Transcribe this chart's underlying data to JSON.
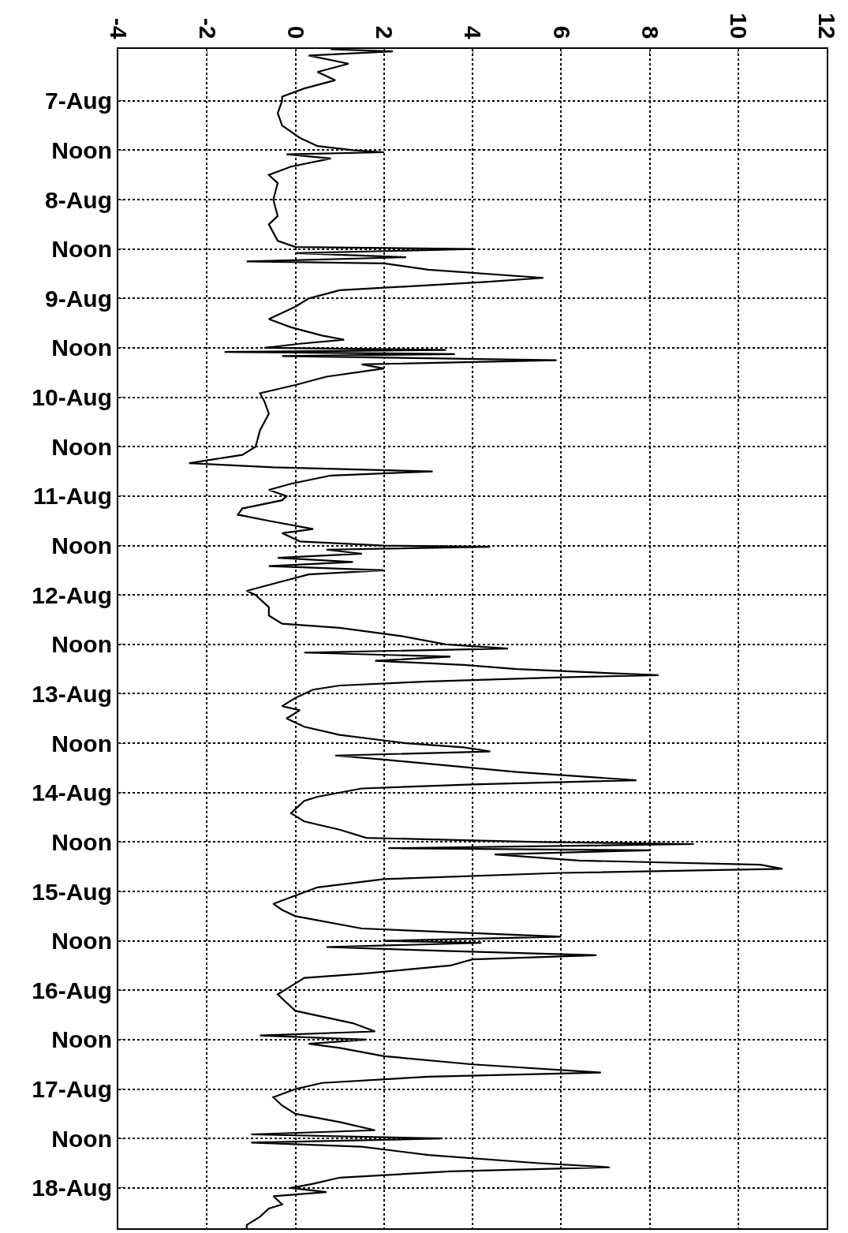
{
  "chart_data": {
    "type": "line",
    "orientation": "horizontal",
    "color": "#000000",
    "line_style": "solid",
    "grid": true,
    "x": [
      "--08-06T11:30",
      "--08-06T12:00",
      "--08-06T13:00",
      "--08-06T15:00",
      "--08-06T17:00",
      "--08-06T19:00",
      "--08-06T21:00",
      "--08-06T23:00",
      "--08-07T00:00",
      "--08-07T03:00",
      "--08-07T06:00",
      "--08-07T09:00",
      "--08-07T11:00",
      "--08-07T12:00",
      "--08-07T12:30",
      "--08-07T13:00",
      "--08-07T14:00",
      "--08-07T16:00",
      "--08-07T18:00",
      "--08-07T20:00",
      "--08-08T00:00",
      "--08-08T04:00",
      "--08-08T06:00",
      "--08-08T10:00",
      "--08-08T11:30",
      "--08-08T12:00",
      "--08-08T13:00",
      "--08-08T14:00",
      "--08-08T15:00",
      "--08-08T15:30",
      "--08-08T17:00",
      "--08-08T19:00",
      "--08-08T20:00",
      "--08-08T22:00",
      "--08-09T00:00",
      "--08-09T02:00",
      "--08-09T05:00",
      "--08-09T07:00",
      "--08-09T09:00",
      "--08-09T10:00",
      "--08-09T11:00",
      "--08-09T12:00",
      "--08-09T12:30",
      "--08-09T13:00",
      "--08-09T13:30",
      "--08-09T14:00",
      "--08-09T15:00",
      "--08-09T16:00",
      "--08-09T17:00",
      "--08-09T19:00",
      "--08-09T21:00",
      "--08-09T23:00",
      "--08-10T01:00",
      "--08-10T04:00",
      "--08-10T08:00",
      "--08-10T12:00",
      "--08-10T14:00",
      "--08-10T16:00",
      "--08-10T17:00",
      "--08-10T18:00",
      "--08-10T19:00",
      "--08-10T21:00",
      "--08-10T22:30",
      "--08-11T00:00",
      "--08-11T01:00",
      "--08-11T03:00",
      "--08-11T04:30",
      "--08-11T06:00",
      "--08-11T08:00",
      "--08-11T09:00",
      "--08-11T11:00",
      "--08-11T12:00",
      "--08-11T12:18",
      "--08-11T13:00",
      "--08-11T14:00",
      "--08-11T15:00",
      "--08-11T16:00",
      "--08-11T17:00",
      "--08-11T18:00",
      "--08-11T19:00",
      "--08-11T21:00",
      "--08-11T23:00",
      "--08-12T00:00",
      "--08-12T03:00",
      "--08-12T05:00",
      "--08-12T07:00",
      "--08-12T08:00",
      "--08-12T10:00",
      "--08-12T12:00",
      "--08-12T13:00",
      "--08-12T14:00",
      "--08-12T15:00",
      "--08-12T16:00",
      "--08-12T17:00",
      "--08-12T18:00",
      "--08-12T19:30",
      "--08-12T20:00",
      "--08-12T21:00",
      "--08-12T22:00",
      "--08-12T23:00",
      "--08-13T01:00",
      "--08-13T03:00",
      "--08-13T04:00",
      "--08-13T06:00",
      "--08-13T08:00",
      "--08-13T10:00",
      "--08-13T12:00",
      "--08-13T13:00",
      "--08-13T14:00",
      "--08-13T15:00",
      "--08-13T16:00",
      "--08-13T17:00",
      "--08-13T19:00",
      "--08-13T21:00",
      "--08-13T22:00",
      "--08-13T23:00",
      "--08-14T01:00",
      "--08-14T02:00",
      "--08-14T05:00",
      "--08-14T07:00",
      "--08-14T09:00",
      "--08-14T11:00",
      "--08-14T12:00",
      "--08-14T12:30",
      "--08-14T13:30",
      "--08-14T14:00",
      "--08-14T15:00",
      "--08-14T16:30",
      "--08-14T17:30",
      "--08-14T18:30",
      "--08-14T19:30",
      "--08-14T21:00",
      "--08-14T23:00",
      "--08-15T01:00",
      "--08-15T03:00",
      "--08-15T04:30",
      "--08-15T06:00",
      "--08-15T09:00",
      "--08-15T11:00",
      "--08-15T12:00",
      "--08-15T12:30",
      "--08-15T13:30",
      "--08-15T14:30",
      "--08-15T15:30",
      "--08-15T16:30",
      "--08-15T18:00",
      "--08-15T19:00",
      "--08-15T20:00",
      "--08-15T21:00",
      "--08-15T23:00",
      "--08-16T01:00",
      "--08-16T03:00",
      "--08-16T05:00",
      "--08-16T08:00",
      "--08-16T10:00",
      "--08-16T11:00",
      "--08-16T12:00",
      "--08-16T13:00",
      "--08-16T14:00",
      "--08-16T16:00",
      "--08-16T18:00",
      "--08-16T20:00",
      "--08-16T21:00",
      "--08-16T22:30",
      "--08-17T00:00",
      "--08-17T02:00",
      "--08-17T04:00",
      "--08-17T06:00",
      "--08-17T08:00",
      "--08-17T10:00",
      "--08-17T11:00",
      "--08-17T12:00",
      "--08-17T13:00",
      "--08-17T14:00",
      "--08-17T16:00",
      "--08-17T18:00",
      "--08-17T19:00",
      "--08-17T20:00",
      "--08-17T21:30",
      "--08-17T23:00",
      "--08-18T00:00",
      "--08-18T01:00",
      "--08-18T02:00",
      "--08-18T04:00",
      "--08-18T05:00",
      "--08-18T07:00",
      "--08-18T09:00",
      "--08-18T09:48"
    ],
    "values": [
      0.8,
      2.2,
      0.3,
      1.2,
      0.5,
      0.9,
      0.2,
      -0.3,
      -0.3,
      -0.4,
      -0.3,
      0.1,
      0.5,
      1.3,
      2.0,
      -0.2,
      0.8,
      -0.1,
      -0.6,
      -0.4,
      -0.5,
      -0.4,
      -0.6,
      -0.4,
      0,
      4.0,
      0,
      2.5,
      -1.1,
      2.0,
      3.0,
      5.6,
      4.3,
      1.0,
      0.3,
      0,
      -0.6,
      -0.1,
      0.6,
      1.1,
      0.1,
      -0.7,
      3.4,
      -1.6,
      3.6,
      -0.3,
      5.9,
      1.5,
      2.0,
      0.7,
      0,
      -0.8,
      -0.7,
      -0.6,
      -0.8,
      -0.9,
      -1.2,
      -2.4,
      -0.5,
      3.1,
      0.8,
      -0.1,
      -0.6,
      -0.2,
      -0.3,
      -1.2,
      -1.3,
      -0.6,
      0.4,
      -0.3,
      0.1,
      2.0,
      4.4,
      0.7,
      1.5,
      -0.4,
      1.3,
      -0.6,
      2.0,
      0.3,
      -0.4,
      -1.1,
      -0.9,
      -0.6,
      -0.6,
      -0.3,
      1.0,
      2.4,
      3.4,
      4.8,
      0.2,
      3.5,
      1.8,
      3.8,
      5.0,
      8.2,
      6.0,
      3.0,
      1.0,
      0.4,
      0,
      -0.3,
      0.1,
      -0.2,
      0.2,
      1.0,
      2.5,
      3.8,
      4.4,
      0.9,
      2.0,
      3.0,
      5.0,
      7.7,
      4.0,
      1.5,
      0.5,
      0.2,
      -0.1,
      0.2,
      1.0,
      1.6,
      5.5,
      9.0,
      2.1,
      8.0,
      4.5,
      6.4,
      10.5,
      11.0,
      6.0,
      2.0,
      0.5,
      0,
      -0.5,
      -0.3,
      0,
      1.5,
      6.0,
      2.0,
      4.2,
      0.7,
      3.5,
      6.8,
      4.0,
      3.5,
      2.5,
      1.5,
      0.2,
      -0.1,
      -0.4,
      -0.2,
      0,
      1.3,
      1.8,
      -0.8,
      1.6,
      0.3,
      1.0,
      2.0,
      4.0,
      6.9,
      3.0,
      0.6,
      0,
      -0.5,
      -0.3,
      0,
      1.0,
      1.8,
      -1.0,
      3.3,
      -1.0,
      1.5,
      3.0,
      5.5,
      7.1,
      3.5,
      1.0,
      0.4,
      -0.1,
      0.7,
      -0.5,
      -0.3,
      -0.6,
      -0.8,
      -1.1,
      -1.1
    ],
    "xlim": [
      -4,
      12
    ],
    "xticks": [
      -4,
      -2,
      0,
      2,
      4,
      6,
      8,
      10,
      12
    ],
    "ylim": [
      "--08-18T09:48",
      "--08-06T11:24"
    ],
    "yticks": [
      {
        "value": "--08-07T00:00",
        "label": "7-Aug"
      },
      {
        "value": "--08-07T12:00",
        "label": "Noon"
      },
      {
        "value": "--08-08T00:00",
        "label": "8-Aug"
      },
      {
        "value": "--08-08T12:00",
        "label": "Noon"
      },
      {
        "value": "--08-09T00:00",
        "label": "9-Aug"
      },
      {
        "value": "--08-09T12:00",
        "label": "Noon"
      },
      {
        "value": "--08-10T00:00",
        "label": "10-Aug"
      },
      {
        "value": "--08-10T12:00",
        "label": "Noon"
      },
      {
        "value": "--08-11T00:00",
        "label": "11-Aug"
      },
      {
        "value": "--08-11T12:00",
        "label": "Noon"
      },
      {
        "value": "--08-12T00:00",
        "label": "12-Aug"
      },
      {
        "value": "--08-12T12:00",
        "label": "Noon"
      },
      {
        "value": "--08-13T00:00",
        "label": "13-Aug"
      },
      {
        "value": "--08-13T12:00",
        "label": "Noon"
      },
      {
        "value": "--08-14T00:00",
        "label": "14-Aug"
      },
      {
        "value": "--08-14T12:00",
        "label": "Noon"
      },
      {
        "value": "--08-15T00:00",
        "label": "15-Aug"
      },
      {
        "value": "--08-15T12:00",
        "label": "Noon"
      },
      {
        "value": "--08-16T00:00",
        "label": "16-Aug"
      },
      {
        "value": "--08-16T12:00",
        "label": "Noon"
      },
      {
        "value": "--08-17T00:00",
        "label": "17-Aug"
      },
      {
        "value": "--08-17T12:00",
        "label": "Noon"
      },
      {
        "value": "--08-18T00:00",
        "label": "18-Aug"
      }
    ]
  }
}
